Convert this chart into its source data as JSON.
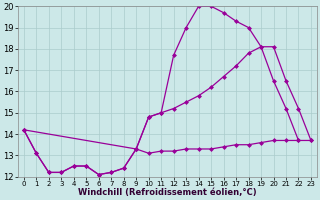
{
  "xlabel": "Windchill (Refroidissement éolien,°C)",
  "bg_color": "#cce8e8",
  "line_color": "#990099",
  "grid_color": "#aacccc",
  "xlim": [
    -0.5,
    23.5
  ],
  "ylim": [
    12,
    20
  ],
  "xticks": [
    0,
    1,
    2,
    3,
    4,
    5,
    6,
    7,
    8,
    9,
    10,
    11,
    12,
    13,
    14,
    15,
    16,
    17,
    18,
    19,
    20,
    21,
    22,
    23
  ],
  "yticks": [
    12,
    13,
    14,
    15,
    16,
    17,
    18,
    19,
    20
  ],
  "curve1_x": [
    0,
    1,
    2,
    3,
    4,
    5,
    6,
    7,
    8,
    9,
    10,
    11,
    12,
    13,
    14,
    15,
    16,
    17,
    18,
    19,
    20,
    21,
    22
  ],
  "curve1_y": [
    14.2,
    13.1,
    12.2,
    12.2,
    12.5,
    12.5,
    12.1,
    12.2,
    12.4,
    13.3,
    14.8,
    15.0,
    17.7,
    19.0,
    20.0,
    20.0,
    19.7,
    19.3,
    19.0,
    18.1,
    16.5,
    15.2,
    13.7
  ],
  "curve2_x": [
    0,
    1,
    2,
    3,
    4,
    5,
    6,
    7,
    8,
    9,
    10,
    11,
    12,
    13,
    14,
    15,
    16,
    17,
    18,
    19,
    20,
    21,
    22,
    23
  ],
  "curve2_y": [
    14.2,
    13.1,
    12.2,
    12.2,
    12.5,
    12.5,
    12.1,
    12.2,
    12.4,
    13.3,
    13.1,
    13.2,
    13.2,
    13.3,
    13.3,
    13.3,
    13.4,
    13.5,
    13.5,
    13.6,
    13.7,
    13.7,
    13.7,
    13.7
  ],
  "curve3_x": [
    0,
    9,
    10,
    11,
    12,
    13,
    14,
    15,
    16,
    17,
    18,
    19,
    20,
    21,
    22,
    23
  ],
  "curve3_y": [
    14.2,
    13.3,
    14.8,
    15.0,
    15.2,
    15.5,
    15.8,
    16.2,
    16.7,
    17.2,
    17.8,
    18.1,
    18.1,
    16.5,
    15.2,
    13.7
  ],
  "marker_size": 2.5,
  "linewidth": 0.9
}
